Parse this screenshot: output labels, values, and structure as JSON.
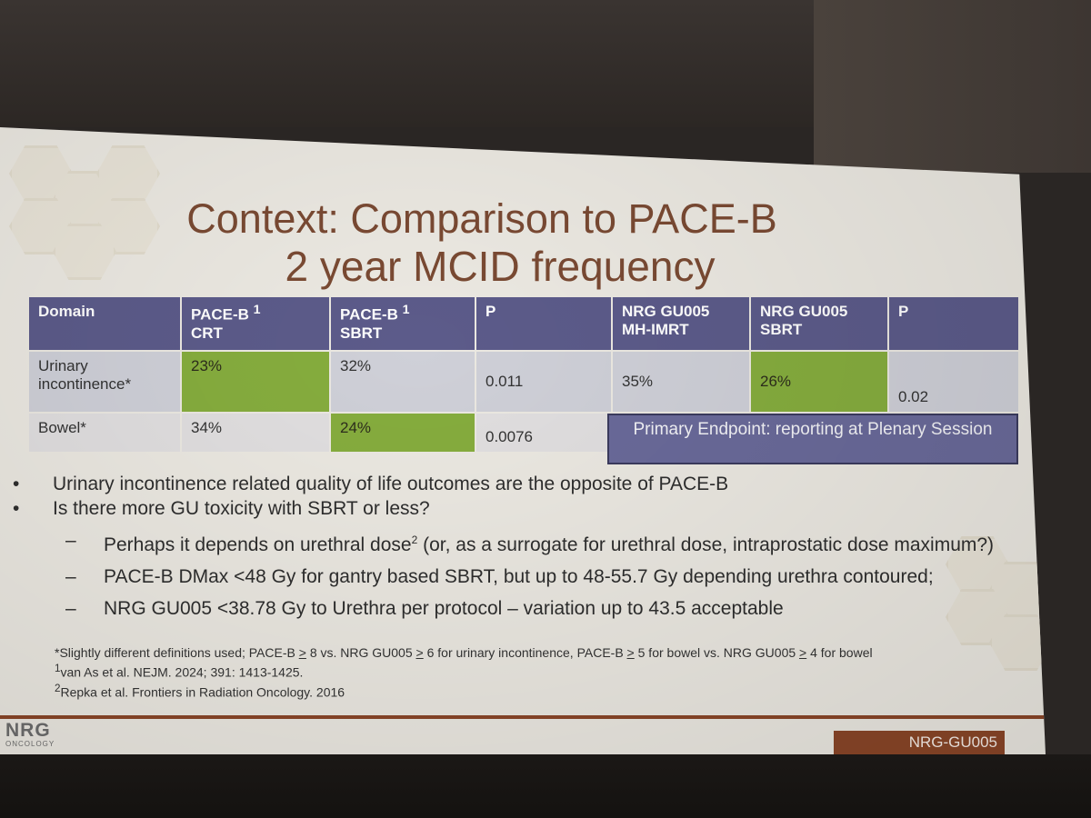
{
  "title": {
    "line1": "Context: Comparison to PACE-B",
    "line2": "2 year MCID frequency"
  },
  "table": {
    "headers": {
      "domain": "Domain",
      "paceb_crt": "PACE-B",
      "paceb_crt_sup": "1",
      "paceb_crt_2": "CRT",
      "paceb_sbrt": "PACE-B",
      "paceb_sbrt_sup": "1",
      "paceb_sbrt_2": "SBRT",
      "p1": "P",
      "nrg_mh": "NRG GU005",
      "nrg_mh_2": "MH-IMRT",
      "nrg_sbrt": "NRG GU005",
      "nrg_sbrt_2": "SBRT",
      "p2": "P"
    },
    "rows": [
      {
        "domain": "Urinary incontinence*",
        "paceb_crt": "23%",
        "paceb_sbrt": "32%",
        "p1": "0.011",
        "nrg_mh": "35%",
        "nrg_sbrt": "26%",
        "p2": "0.02"
      },
      {
        "domain": "Bowel*",
        "paceb_crt": "34%",
        "paceb_sbrt": "24%",
        "p1": "0.0076"
      }
    ],
    "highlight_color": "#86ad3e"
  },
  "endpoint_box": "Primary Endpoint: reporting at Plenary Session",
  "bullets": [
    {
      "level": 1,
      "mark": "•",
      "text": "Urinary incontinence related quality of life outcomes are the opposite of PACE-B"
    },
    {
      "level": 1,
      "mark": "•",
      "text": "Is there more GU toxicity with SBRT or less?"
    },
    {
      "level": 2,
      "mark": "–",
      "text_a": "Perhaps it depends on urethral dose",
      "sup": "2",
      "text_b": " (or, as a surrogate for urethral dose, intraprostatic dose maximum?)"
    },
    {
      "level": 2,
      "mark": "–",
      "text": "PACE-B DMax <48 Gy for gantry based SBRT, but up to 48-55.7 Gy depending urethra contoured;"
    },
    {
      "level": 2,
      "mark": "–",
      "text": "NRG GU005 <38.78 Gy to Urethra per protocol – variation up to 43.5 acceptable"
    }
  ],
  "footnotes": {
    "f0_a": "*Slightly different definitions used; PACE-B ",
    "f0_b": "8 vs. NRG GU005 ",
    "f0_c": "6 for urinary incontinence, PACE-B ",
    "f0_d": "5 for bowel vs. NRG GU005 ",
    "f0_e": "4 for bowel",
    "geq": ">",
    "f1_sup": "1",
    "f1": "van As et al. NEJM. 2024; 391: 1413-1425.",
    "f2_sup": "2",
    "f2": "Repka et al. Frontiers in Radiation Oncology. 2016"
  },
  "logo": {
    "main": "NRG",
    "sub": "ONCOLOGY"
  },
  "footer_label": "NRG-GU005",
  "colors": {
    "title": "#7a4a33",
    "header": "#5c5b8a",
    "accent_bar": "#8a4628"
  }
}
